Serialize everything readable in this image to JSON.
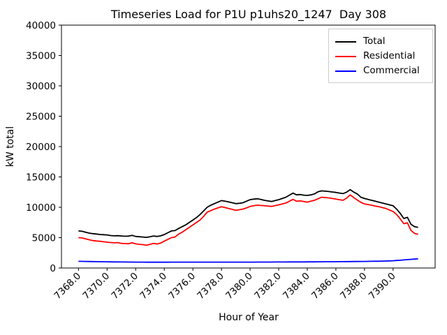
{
  "title": "Timeseries Load for P1U p1uhs20_1247  Day 308",
  "chart_data": {
    "type": "line",
    "title": "Timeseries Load for P1U p1uhs20_1247  Day 308",
    "xlabel": "Hour of Year",
    "ylabel": "kW total",
    "xlim": [
      7366.81,
      7392.94
    ],
    "ylim": [
      0,
      40000
    ],
    "grid": false,
    "legend_position": "upper right",
    "x_ticks": [
      7368,
      7370,
      7372,
      7374,
      7376,
      7378,
      7380,
      7382,
      7384,
      7386,
      7388,
      7390
    ],
    "x_tick_labels": [
      "7368.0",
      "7370.0",
      "7372.0",
      "7374.0",
      "7376.0",
      "7378.0",
      "7380.0",
      "7382.0",
      "7384.0",
      "7386.0",
      "7388.0",
      "7390.0"
    ],
    "y_ticks": [
      0,
      5000,
      10000,
      15000,
      20000,
      25000,
      30000,
      35000,
      40000
    ],
    "y_tick_labels": [
      "0",
      "5000",
      "10000",
      "15000",
      "20000",
      "25000",
      "30000",
      "35000",
      "40000"
    ],
    "x": [
      7368.0,
      7368.25,
      7368.5,
      7368.75,
      7369.0,
      7369.25,
      7369.5,
      7369.75,
      7370.0,
      7370.25,
      7370.5,
      7370.75,
      7371.0,
      7371.25,
      7371.5,
      7371.75,
      7372.0,
      7372.25,
      7372.5,
      7372.75,
      7373.0,
      7373.25,
      7373.5,
      7373.75,
      7374.0,
      7374.25,
      7374.5,
      7374.75,
      7375.0,
      7375.25,
      7375.5,
      7375.75,
      7376.0,
      7376.25,
      7376.5,
      7376.75,
      7377.0,
      7377.25,
      7377.5,
      7377.75,
      7378.0,
      7378.25,
      7378.5,
      7378.75,
      7379.0,
      7379.25,
      7379.5,
      7379.75,
      7380.0,
      7380.25,
      7380.5,
      7380.75,
      7381.0,
      7381.25,
      7381.5,
      7381.75,
      7382.0,
      7382.25,
      7382.5,
      7382.75,
      7383.0,
      7383.25,
      7383.5,
      7383.75,
      7384.0,
      7384.25,
      7384.5,
      7384.75,
      7385.0,
      7385.25,
      7385.5,
      7385.75,
      7386.0,
      7386.25,
      7386.5,
      7386.75,
      7387.0,
      7387.25,
      7387.5,
      7387.75,
      7388.0,
      7388.25,
      7388.5,
      7388.75,
      7389.0,
      7389.25,
      7389.5,
      7389.75,
      7390.0,
      7390.25,
      7390.5,
      7390.75,
      7391.0,
      7391.25,
      7391.5,
      7391.75
    ],
    "series": [
      {
        "name": "Total",
        "color": "#000000",
        "values": [
          6100,
          6050,
          5900,
          5750,
          5650,
          5600,
          5520,
          5480,
          5450,
          5350,
          5300,
          5320,
          5280,
          5230,
          5250,
          5380,
          5200,
          5150,
          5100,
          5050,
          5150,
          5280,
          5200,
          5300,
          5500,
          5800,
          6100,
          6160,
          6500,
          6800,
          7100,
          7500,
          7900,
          8300,
          8800,
          9400,
          10000,
          10350,
          10600,
          10850,
          11100,
          11000,
          10900,
          10750,
          10600,
          10650,
          10750,
          11000,
          11250,
          11350,
          11400,
          11300,
          11150,
          11050,
          10950,
          11100,
          11250,
          11450,
          11650,
          12000,
          12330,
          12050,
          12100,
          12000,
          11950,
          12050,
          12200,
          12550,
          12700,
          12650,
          12600,
          12520,
          12450,
          12350,
          12250,
          12500,
          12900,
          12500,
          12200,
          11650,
          11450,
          11300,
          11150,
          11000,
          10850,
          10700,
          10550,
          10400,
          10250,
          9700,
          9000,
          8150,
          8350,
          7200,
          6800,
          6700
        ]
      },
      {
        "name": "Residential",
        "color": "#ff0000",
        "values": [
          5000,
          4950,
          4800,
          4650,
          4520,
          4450,
          4400,
          4320,
          4250,
          4200,
          4150,
          4180,
          4060,
          4020,
          4000,
          4150,
          3980,
          3900,
          3850,
          3750,
          3900,
          4050,
          3950,
          4100,
          4440,
          4700,
          5000,
          5100,
          5580,
          5900,
          6300,
          6700,
          7100,
          7500,
          7900,
          8500,
          9200,
          9450,
          9700,
          9900,
          10100,
          9950,
          9800,
          9650,
          9500,
          9600,
          9700,
          9900,
          10150,
          10250,
          10350,
          10300,
          10270,
          10200,
          10150,
          10280,
          10400,
          10550,
          10700,
          11000,
          11300,
          11000,
          11050,
          10950,
          10850,
          11000,
          11150,
          11400,
          11650,
          11600,
          11550,
          11450,
          11350,
          11250,
          11150,
          11500,
          12050,
          11600,
          11200,
          10800,
          10550,
          10450,
          10350,
          10200,
          10100,
          9950,
          9800,
          9550,
          9300,
          8800,
          8100,
          7300,
          7450,
          6200,
          5700,
          5550
        ]
      },
      {
        "name": "Commercial",
        "color": "#0000ff",
        "values": [
          1100,
          1090,
          1080,
          1070,
          1060,
          1050,
          1040,
          1030,
          1020,
          1010,
          1000,
          995,
          990,
          985,
          980,
          975,
          970,
          965,
          960,
          955,
          950,
          950,
          950,
          950,
          955,
          955,
          960,
          960,
          960,
          960,
          960,
          960,
          960,
          960,
          960,
          960,
          960,
          960,
          960,
          960,
          965,
          965,
          965,
          965,
          965,
          965,
          965,
          970,
          970,
          970,
          975,
          975,
          975,
          980,
          980,
          985,
          985,
          990,
          990,
          995,
          1000,
          1000,
          1005,
          1005,
          1010,
          1010,
          1015,
          1020,
          1025,
          1030,
          1030,
          1035,
          1040,
          1045,
          1050,
          1055,
          1060,
          1065,
          1070,
          1075,
          1080,
          1090,
          1100,
          1110,
          1120,
          1135,
          1150,
          1170,
          1200,
          1240,
          1280,
          1330,
          1380,
          1430,
          1470,
          1500
        ]
      }
    ]
  }
}
